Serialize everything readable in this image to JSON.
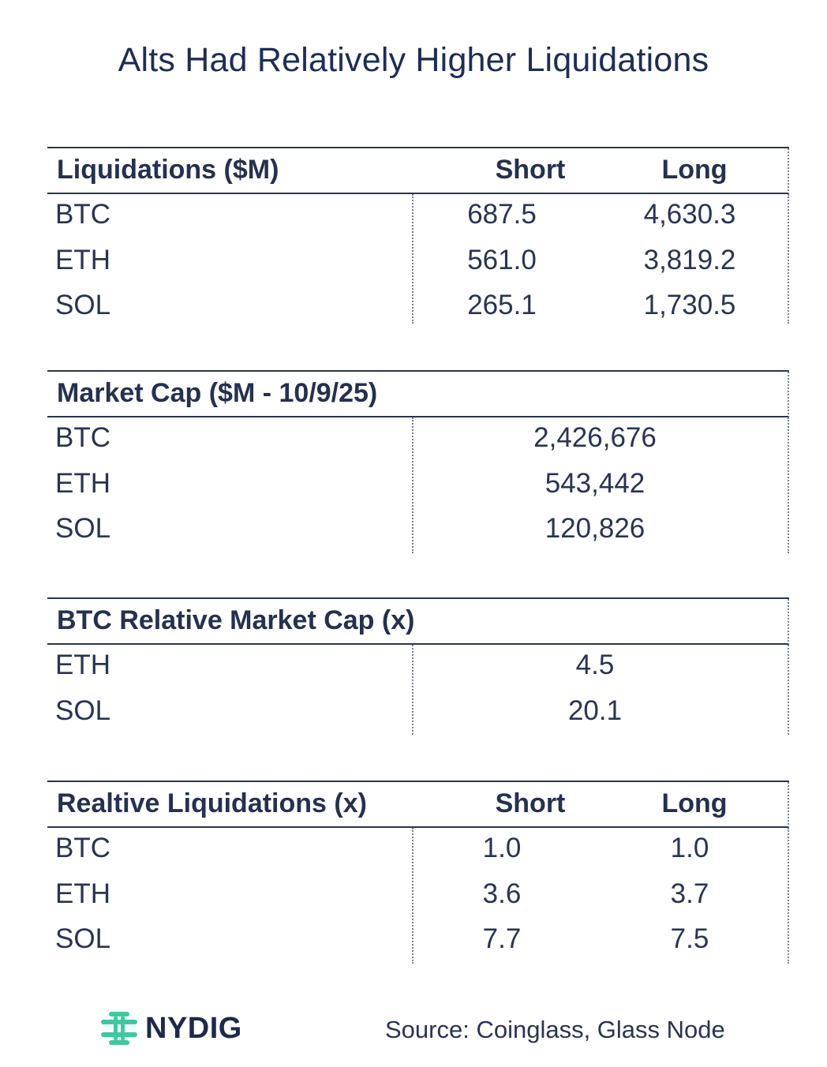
{
  "title": "Alts Had Relatively Higher Liquidations",
  "tables": {
    "liquidations": {
      "header": "Liquidations ($M)",
      "short_label": "Short",
      "long_label": "Long",
      "rows": [
        {
          "sym": "BTC",
          "short": "687.5",
          "long": "4,630.3"
        },
        {
          "sym": "ETH",
          "short": "561.0",
          "long": "3,819.2"
        },
        {
          "sym": "SOL",
          "short": "265.1",
          "long": "1,730.5"
        }
      ]
    },
    "market_cap": {
      "header": "Market Cap ($M - 10/9/25)",
      "rows": [
        {
          "sym": "BTC",
          "value": "2,426,676"
        },
        {
          "sym": "ETH",
          "value": "543,442"
        },
        {
          "sym": "SOL",
          "value": "120,826"
        }
      ]
    },
    "relative_market_cap": {
      "header": "BTC Relative Market Cap (x)",
      "rows": [
        {
          "sym": "ETH",
          "value": "4.5"
        },
        {
          "sym": "SOL",
          "value": "20.1"
        }
      ]
    },
    "relative_liquidations": {
      "header": "Realtive Liquidations (x)",
      "short_label": "Short",
      "long_label": "Long",
      "rows": [
        {
          "sym": "BTC",
          "short": "1.0",
          "long": "1.0"
        },
        {
          "sym": "ETH",
          "short": "3.6",
          "long": "3.7"
        },
        {
          "sym": "SOL",
          "short": "7.7",
          "long": "7.5"
        }
      ]
    }
  },
  "footer": {
    "logo_text": "NYDIG",
    "logo_icon": "nydig-logo-icon",
    "source": "Source: Coinglass, Glass Node"
  },
  "colors": {
    "text": "#1e2a4a",
    "logo_accent": "#3cc9a0"
  }
}
